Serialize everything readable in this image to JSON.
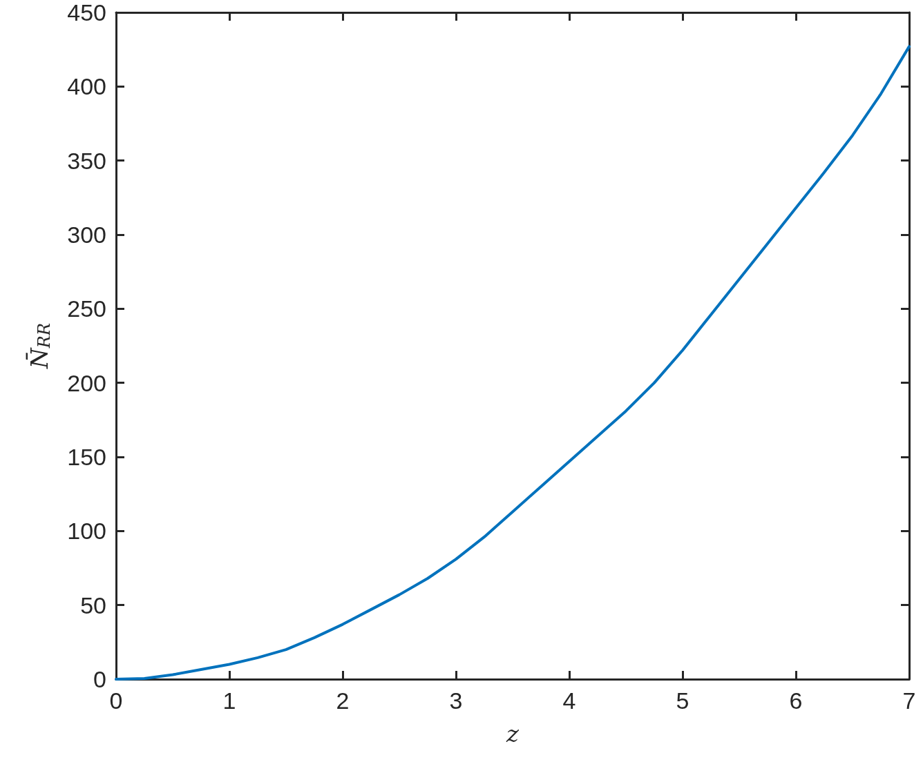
{
  "chart_data": {
    "type": "line",
    "xlabel": "z",
    "ylabel": "N̄$_{RR}$",
    "x": [
      0,
      0.25,
      0.5,
      0.75,
      1,
      1.25,
      1.5,
      1.75,
      2,
      2.25,
      2.5,
      2.75,
      3,
      3.25,
      3.5,
      3.75,
      4,
      4.25,
      4.5,
      4.75,
      5,
      5.25,
      5.5,
      5.75,
      6,
      6.25,
      6.5,
      6.75,
      7
    ],
    "series": [
      {
        "color": "#0072bd",
        "values": [
          0,
          0.5,
          3,
          6.5,
          10,
          14.5,
          20,
          28,
          37,
          47,
          57,
          68,
          81,
          96,
          113,
          130,
          147,
          164,
          181,
          200,
          222,
          246,
          270,
          294,
          318,
          342,
          367,
          395,
          427
        ]
      }
    ],
    "xlim": [
      0,
      7
    ],
    "xticks": [
      0,
      1,
      2,
      3,
      4,
      5,
      6,
      7
    ],
    "ylim": [
      0,
      450
    ],
    "yticks": [
      0,
      50,
      100,
      150,
      200,
      250,
      300,
      350,
      400,
      450
    ],
    "marker": "none",
    "line_style": "solid"
  }
}
